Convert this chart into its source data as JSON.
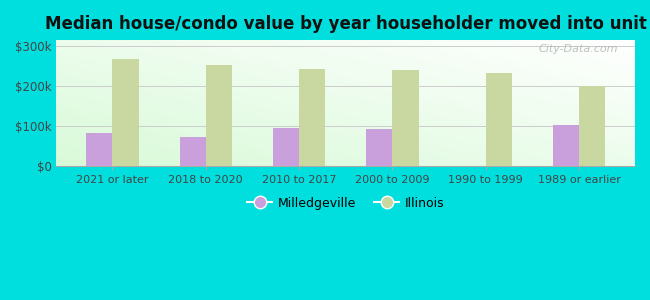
{
  "title": "Median house/condo value by year householder moved into unit",
  "categories": [
    "2021 or later",
    "2018 to 2020",
    "2010 to 2017",
    "2000 to 2009",
    "1990 to 1999",
    "1989 or earlier"
  ],
  "milledgeville_values": [
    83000,
    72000,
    95000,
    93000,
    0,
    102000
  ],
  "illinois_values": [
    268000,
    253000,
    242000,
    240000,
    232000,
    201000
  ],
  "milledgeville_color": "#c9a0dc",
  "illinois_color": "#c8d8a0",
  "ylabel_ticks": [
    0,
    100000,
    200000,
    300000
  ],
  "ylabel_labels": [
    "$0",
    "$100k",
    "$200k",
    "$300k"
  ],
  "ylim": [
    0,
    315000
  ],
  "legend_milledgeville": "Milledgeville",
  "legend_illinois": "Illinois",
  "watermark": "City-Data.com",
  "bar_width": 0.28,
  "outer_bg_color": "#00dede"
}
